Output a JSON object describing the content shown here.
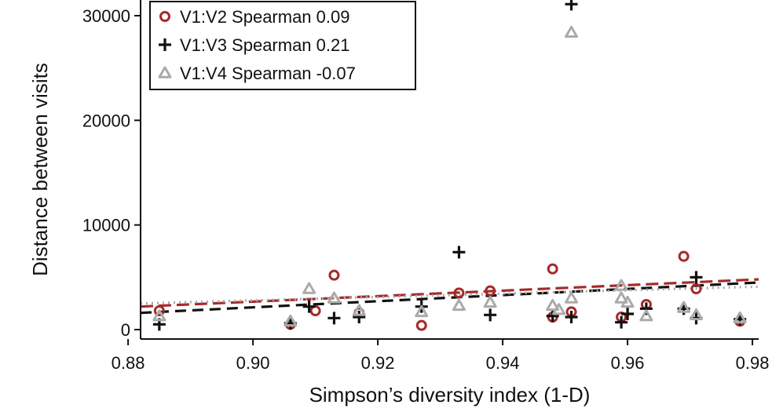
{
  "chart_data": {
    "type": "scatter",
    "xlabel": "Simpson’s diversity index (1-D)",
    "ylabel": "Distance between visits",
    "xlim": [
      0.882,
      0.981
    ],
    "ylim": [
      -900,
      31500
    ],
    "x_ticks": [
      0.88,
      0.9,
      0.92,
      0.94,
      0.96,
      0.98
    ],
    "x_tick_labels": [
      "0.88",
      "0.90",
      "0.92",
      "0.94",
      "0.96",
      "0.98"
    ],
    "y_ticks": [
      0,
      10000,
      20000,
      30000
    ],
    "y_tick_labels": [
      "0",
      "10000",
      "20000",
      "30000"
    ],
    "legend_position": "top-left",
    "series": [
      {
        "name": "V1:V2 Spearman 0.09",
        "marker": "circle",
        "color": "#a52a2a",
        "trend_style": "long-dash",
        "trend": [
          [
            0.882,
            2200
          ],
          [
            0.981,
            4800
          ]
        ],
        "points": [
          [
            0.885,
            1800
          ],
          [
            0.906,
            500
          ],
          [
            0.91,
            1800
          ],
          [
            0.913,
            5200
          ],
          [
            0.917,
            1600
          ],
          [
            0.927,
            400
          ],
          [
            0.933,
            3500
          ],
          [
            0.938,
            3700
          ],
          [
            0.948,
            5800
          ],
          [
            0.948,
            1200
          ],
          [
            0.951,
            1700
          ],
          [
            0.959,
            1200
          ],
          [
            0.963,
            2400
          ],
          [
            0.969,
            7000
          ],
          [
            0.971,
            3900
          ],
          [
            0.978,
            800
          ]
        ]
      },
      {
        "name": "V1:V3 Spearman 0.21",
        "marker": "plus",
        "color": "#111111",
        "trend_style": "dash",
        "trend": [
          [
            0.882,
            1600
          ],
          [
            0.981,
            4500
          ]
        ],
        "points": [
          [
            0.885,
            500
          ],
          [
            0.906,
            600
          ],
          [
            0.909,
            2200
          ],
          [
            0.913,
            1100
          ],
          [
            0.917,
            1200
          ],
          [
            0.927,
            2200
          ],
          [
            0.933,
            7400
          ],
          [
            0.938,
            1400
          ],
          [
            0.948,
            1300
          ],
          [
            0.951,
            31100
          ],
          [
            0.951,
            1200
          ],
          [
            0.959,
            700
          ],
          [
            0.96,
            1500
          ],
          [
            0.963,
            2000
          ],
          [
            0.969,
            2000
          ],
          [
            0.971,
            5000
          ],
          [
            0.971,
            1100
          ],
          [
            0.978,
            1000
          ]
        ]
      },
      {
        "name": "V1:V4 Spearman -0.07",
        "marker": "triangle",
        "color": "#aaaaaa",
        "trend_style": "dotted",
        "trend": [
          [
            0.882,
            2500
          ],
          [
            0.981,
            4100
          ]
        ],
        "points": [
          [
            0.885,
            1300
          ],
          [
            0.906,
            800
          ],
          [
            0.909,
            3900
          ],
          [
            0.913,
            3000
          ],
          [
            0.917,
            1800
          ],
          [
            0.927,
            1700
          ],
          [
            0.933,
            2300
          ],
          [
            0.938,
            2600
          ],
          [
            0.948,
            2300
          ],
          [
            0.949,
            1900
          ],
          [
            0.951,
            28400
          ],
          [
            0.951,
            3000
          ],
          [
            0.959,
            4200
          ],
          [
            0.959,
            3000
          ],
          [
            0.96,
            2600
          ],
          [
            0.963,
            1300
          ],
          [
            0.969,
            2100
          ],
          [
            0.971,
            1400
          ],
          [
            0.978,
            1100
          ]
        ]
      }
    ]
  }
}
